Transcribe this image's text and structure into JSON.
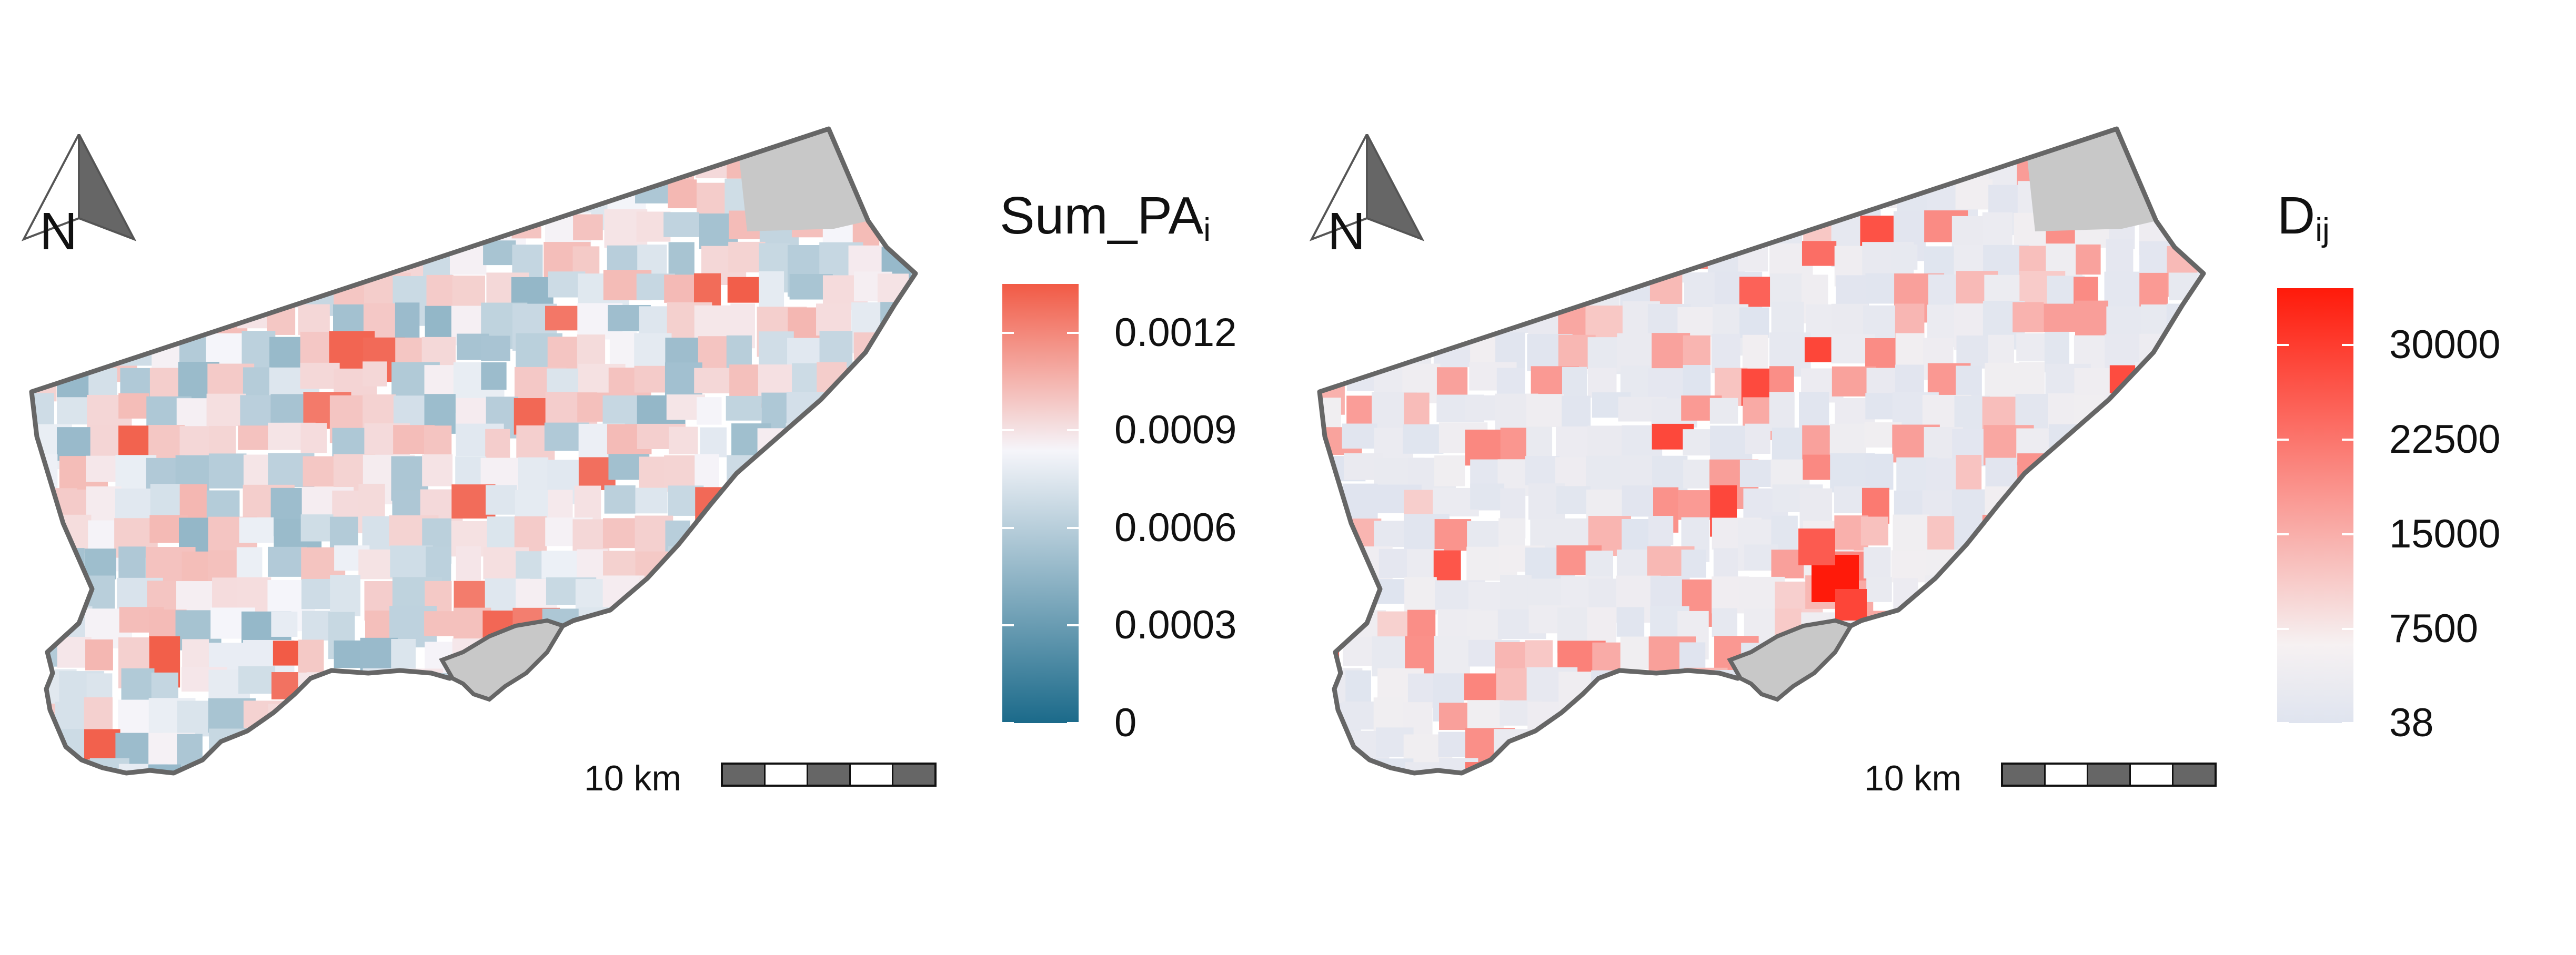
{
  "maps": [
    {
      "id": "left",
      "legend_title": "Sum_PA",
      "legend_subscript": "i",
      "legend_ticks": [
        "0.0012",
        "0.0009",
        "0.0006",
        "0.0003",
        "0"
      ],
      "legend_tick_values": [
        0.0012,
        0.0009,
        0.0006,
        0.0003,
        0
      ],
      "legend_range": [
        0,
        0.00135
      ],
      "colors": {
        "low": "#1b6a8a",
        "mid": "#f5f5fa",
        "high": "#f25a45"
      },
      "north_label": "N",
      "scale_label": "10 km",
      "palette": "diverging"
    },
    {
      "id": "right",
      "legend_title": "D",
      "legend_subscript": "ij",
      "legend_ticks": [
        "30000",
        "22500",
        "15000",
        "7500",
        "38"
      ],
      "legend_tick_values": [
        30000,
        22500,
        15000,
        7500,
        38
      ],
      "legend_range": [
        38,
        34500
      ],
      "colors": {
        "low": "#dfe4ef",
        "mid": "#f6f1f2",
        "high": "#ff1a0a"
      },
      "north_label": "N",
      "scale_label": "10 km",
      "palette": "sequential"
    }
  ],
  "colors": {
    "outline": "#666666",
    "no_data": "#c8c8c8",
    "text": "#111111"
  }
}
